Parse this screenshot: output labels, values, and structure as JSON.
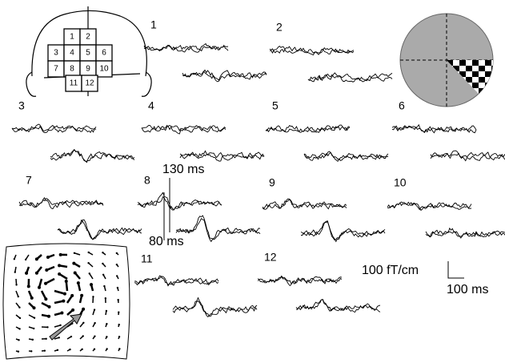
{
  "head_grid": {
    "cells": [
      "1",
      "2",
      "3",
      "4",
      "5",
      "6",
      "7",
      "8",
      "9",
      "10",
      "11",
      "12"
    ]
  },
  "channels": [
    "1",
    "2",
    "3",
    "4",
    "5",
    "6",
    "7",
    "8",
    "9",
    "10",
    "11",
    "12"
  ],
  "annotations": {
    "late_peak": "130 ms",
    "early_peak": "80 ms"
  },
  "scale_bar": {
    "amplitude": "100 fT/cm",
    "time": "100 ms"
  }
}
